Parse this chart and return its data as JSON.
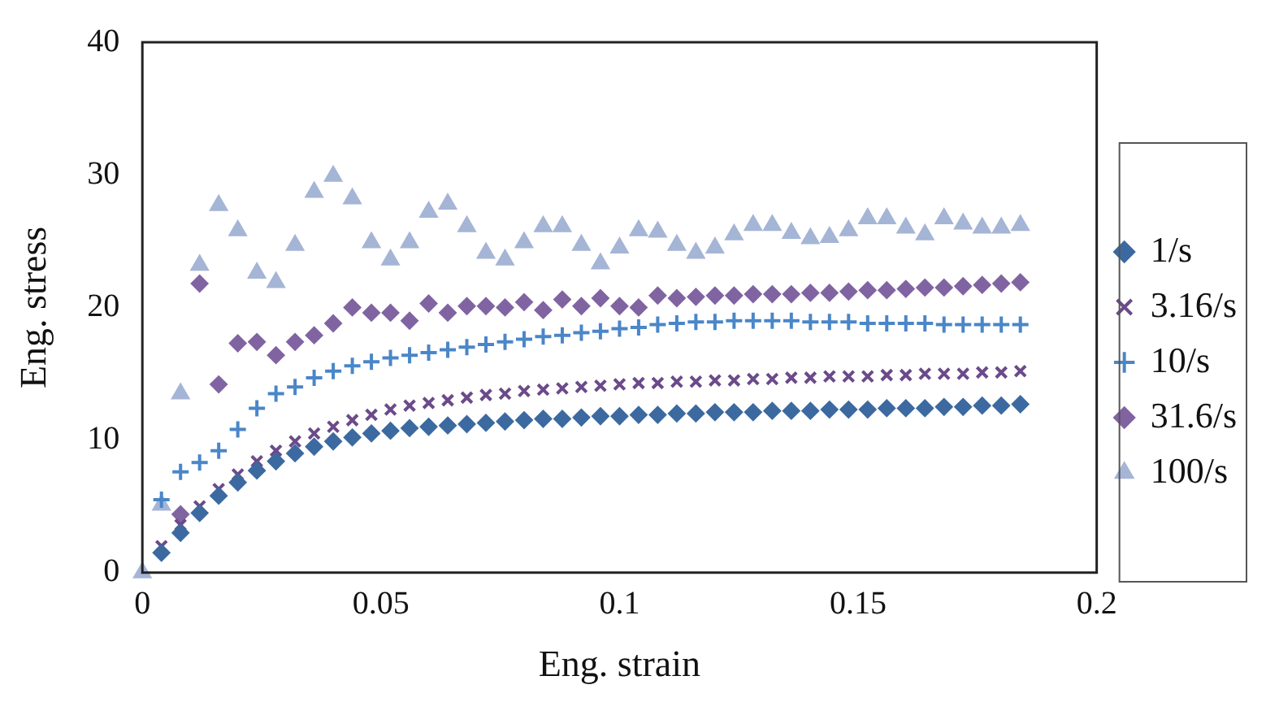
{
  "chart_data": {
    "type": "scatter",
    "xlabel": "Eng. strain",
    "ylabel": "Eng. stress",
    "xlim": [
      0,
      0.2
    ],
    "xticks": [
      0,
      0.05,
      0.1,
      0.15,
      0.2
    ],
    "ylim": [
      0,
      40
    ],
    "yticks": [
      0,
      10,
      20,
      30,
      40
    ],
    "grid": false,
    "legend": "right",
    "x": [
      0,
      0.004,
      0.008,
      0.012,
      0.016,
      0.02,
      0.024,
      0.028,
      0.032,
      0.036,
      0.04,
      0.044,
      0.048,
      0.052,
      0.056,
      0.06,
      0.064,
      0.068,
      0.072,
      0.076,
      0.08,
      0.084,
      0.088,
      0.092,
      0.096,
      0.1,
      0.104,
      0.108,
      0.112,
      0.116,
      0.12,
      0.124,
      0.128,
      0.132,
      0.136,
      0.14,
      0.144,
      0.148,
      0.152,
      0.156,
      0.16,
      0.164,
      0.168,
      0.172,
      0.176,
      0.18,
      0.184
    ],
    "series": [
      {
        "name": "1/s",
        "color": "#3c6aa0",
        "marker": "diamond",
        "values": [
          null,
          1.5,
          3,
          4.5,
          5.8,
          6.8,
          7.7,
          8.4,
          9.0,
          9.5,
          9.9,
          10.2,
          10.5,
          10.7,
          10.9,
          11.0,
          11.1,
          11.2,
          11.3,
          11.4,
          11.5,
          11.6,
          11.6,
          11.7,
          11.8,
          11.8,
          11.9,
          11.9,
          12.0,
          12.0,
          12.1,
          12.1,
          12.1,
          12.2,
          12.2,
          12.2,
          12.3,
          12.3,
          12.3,
          12.4,
          12.4,
          12.4,
          12.5,
          12.5,
          12.6,
          12.6,
          12.7
        ]
      },
      {
        "name": "3.16/s",
        "color": "#6b4a8a",
        "marker": "cross",
        "values": [
          null,
          2.0,
          3.6,
          5.0,
          6.3,
          7.4,
          8.4,
          9.2,
          9.9,
          10.5,
          11.0,
          11.5,
          11.9,
          12.3,
          12.6,
          12.8,
          13.0,
          13.2,
          13.4,
          13.5,
          13.7,
          13.8,
          13.9,
          14.0,
          14.1,
          14.2,
          14.3,
          14.3,
          14.4,
          14.4,
          14.5,
          14.5,
          14.6,
          14.6,
          14.7,
          14.7,
          14.8,
          14.8,
          14.8,
          14.9,
          14.9,
          15.0,
          15.0,
          15.0,
          15.1,
          15.1,
          15.2
        ]
      },
      {
        "name": "10/s",
        "color": "#4a86c8",
        "marker": "plus",
        "values": [
          null,
          5.5,
          7.6,
          8.3,
          9.2,
          10.8,
          12.4,
          13.5,
          14.0,
          14.7,
          15.2,
          15.6,
          15.9,
          16.2,
          16.4,
          16.6,
          16.8,
          17.0,
          17.2,
          17.4,
          17.6,
          17.8,
          17.9,
          18.1,
          18.2,
          18.4,
          18.5,
          18.7,
          18.8,
          18.9,
          18.9,
          19.0,
          19.0,
          19.0,
          19.0,
          18.9,
          18.9,
          18.9,
          18.8,
          18.8,
          18.8,
          18.8,
          18.7,
          18.7,
          18.7,
          18.7,
          18.7
        ]
      },
      {
        "name": "31.6/s",
        "color": "#8064a2",
        "marker": "diamond",
        "values": [
          null,
          null,
          4.4,
          21.8,
          14.2,
          17.3,
          17.4,
          16.4,
          17.4,
          17.9,
          18.8,
          20.0,
          19.6,
          19.6,
          19.0,
          20.3,
          19.6,
          20.1,
          20.1,
          20.0,
          20.4,
          19.8,
          20.6,
          20.1,
          20.7,
          20.1,
          20.0,
          20.9,
          20.7,
          20.8,
          20.9,
          20.9,
          21.0,
          21.0,
          21.0,
          21.1,
          21.1,
          21.2,
          21.3,
          21.3,
          21.4,
          21.5,
          21.5,
          21.6,
          21.7,
          21.8,
          21.9
        ]
      },
      {
        "name": "100/s",
        "color": "#a5b5d5",
        "marker": "triangle",
        "values": [
          0,
          5.1,
          13.5,
          23.2,
          27.7,
          25.8,
          22.6,
          21.9,
          24.7,
          28.7,
          29.9,
          28.2,
          24.9,
          23.6,
          24.9,
          27.2,
          27.8,
          26.1,
          24.1,
          23.6,
          24.9,
          26.1,
          26.1,
          24.7,
          23.3,
          24.5,
          25.8,
          25.7,
          24.7,
          24.1,
          24.5,
          25.5,
          26.2,
          26.2,
          25.6,
          25.2,
          25.3,
          25.8,
          26.7,
          26.7,
          26.0,
          25.5,
          26.7,
          26.3,
          26.0,
          26.0,
          26.2
        ]
      }
    ]
  }
}
